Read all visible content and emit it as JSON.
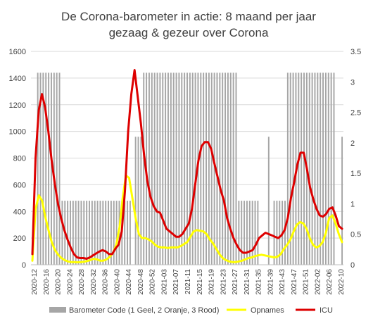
{
  "chart_data": {
    "type": "bar+line",
    "title_line1": "De Corona-barometer in actie: 8 maand per jaar",
    "title_line2": "gezaag & gezeur  over Corona",
    "y_left": {
      "min": 0,
      "max": 1600,
      "ticks": [
        "0",
        "200",
        "400",
        "600",
        "800",
        "1000",
        "1200",
        "1400",
        "1600"
      ]
    },
    "y_right": {
      "min": 0,
      "max": 3.5,
      "ticks": [
        "0",
        "0.5",
        "1",
        "1.5",
        "2",
        "2.5",
        "3",
        "3.5"
      ]
    },
    "x_tick_labels": [
      "2020-12",
      "2020-16",
      "2020-20",
      "2020-24",
      "2020-28",
      "2020-32",
      "2020-36",
      "2020-40",
      "2020-44",
      "2020-48",
      "2020-52",
      "2021-03",
      "2021-07",
      "2021-11",
      "2021-15",
      "2021-19",
      "2021-23",
      "2021-27",
      "2021-31",
      "2021-35",
      "2021-39",
      "2021-43",
      "2021-47",
      "2021-51",
      "2022-02",
      "2022-06",
      "2022-10"
    ],
    "barometer_bars": [
      0,
      0,
      3,
      3,
      3,
      3,
      3,
      3,
      3,
      3,
      3,
      1,
      1,
      1,
      1,
      1,
      1,
      1,
      1,
      1,
      1,
      1,
      1,
      1,
      1,
      1,
      1,
      1,
      1,
      1,
      1,
      1,
      1,
      1,
      1,
      1,
      1,
      0,
      2,
      2,
      2,
      3,
      3,
      3,
      3,
      3,
      3,
      3,
      3,
      3,
      3,
      3,
      3,
      3,
      3,
      3,
      3,
      3,
      3,
      3,
      3,
      3,
      3,
      3,
      3,
      3,
      3,
      3,
      3,
      3,
      3,
      3,
      3,
      3,
      3,
      3,
      1,
      1,
      1,
      1,
      1,
      1,
      1,
      1,
      0,
      0,
      0,
      2,
      0,
      1,
      1,
      1,
      1,
      1,
      3,
      3,
      3,
      3,
      3,
      3,
      3,
      3,
      3,
      3,
      3,
      3,
      3,
      3,
      3,
      3,
      3,
      3,
      0,
      0,
      2
    ],
    "opnames": [
      30,
      420,
      520,
      480,
      360,
      260,
      170,
      110,
      75,
      50,
      35,
      25,
      20,
      20,
      18,
      20,
      22,
      28,
      35,
      45,
      40,
      30,
      30,
      40,
      60,
      90,
      150,
      280,
      500,
      670,
      650,
      500,
      350,
      230,
      200,
      200,
      190,
      175,
      150,
      135,
      130,
      130,
      125,
      130,
      130,
      130,
      140,
      155,
      170,
      210,
      250,
      260,
      255,
      250,
      230,
      190,
      160,
      120,
      80,
      50,
      35,
      25,
      20,
      20,
      25,
      30,
      40,
      50,
      55,
      65,
      70,
      75,
      70,
      65,
      60,
      55,
      60,
      80,
      120,
      150,
      190,
      250,
      300,
      320,
      310,
      270,
      200,
      150,
      130,
      140,
      170,
      240,
      350,
      370,
      310,
      230,
      170
    ],
    "icu": [
      80,
      800,
      1160,
      1280,
      1180,
      1000,
      790,
      610,
      460,
      350,
      260,
      190,
      130,
      80,
      55,
      50,
      50,
      45,
      55,
      70,
      85,
      100,
      110,
      100,
      80,
      80,
      120,
      150,
      250,
      550,
      1000,
      1280,
      1460,
      1260,
      1060,
      820,
      630,
      510,
      440,
      400,
      390,
      330,
      270,
      250,
      230,
      210,
      210,
      230,
      270,
      310,
      420,
      600,
      780,
      890,
      920,
      920,
      870,
      760,
      660,
      560,
      480,
      350,
      270,
      200,
      150,
      110,
      90,
      90,
      100,
      110,
      150,
      200,
      220,
      240,
      230,
      220,
      210,
      200,
      220,
      260,
      350,
      500,
      620,
      750,
      840,
      840,
      720,
      580,
      490,
      420,
      370,
      360,
      380,
      420,
      430,
      370,
      290,
      270
    ],
    "legend": [
      "Barometer Code (1 Geel, 2 Oranje, 3 Rood)",
      "Opnames",
      "ICU"
    ],
    "colors": {
      "bars": "#a6a6a6",
      "opnames": "#ffff00",
      "icu": "#dd0000",
      "grid": "#d9d9d9",
      "text": "#404040"
    }
  }
}
